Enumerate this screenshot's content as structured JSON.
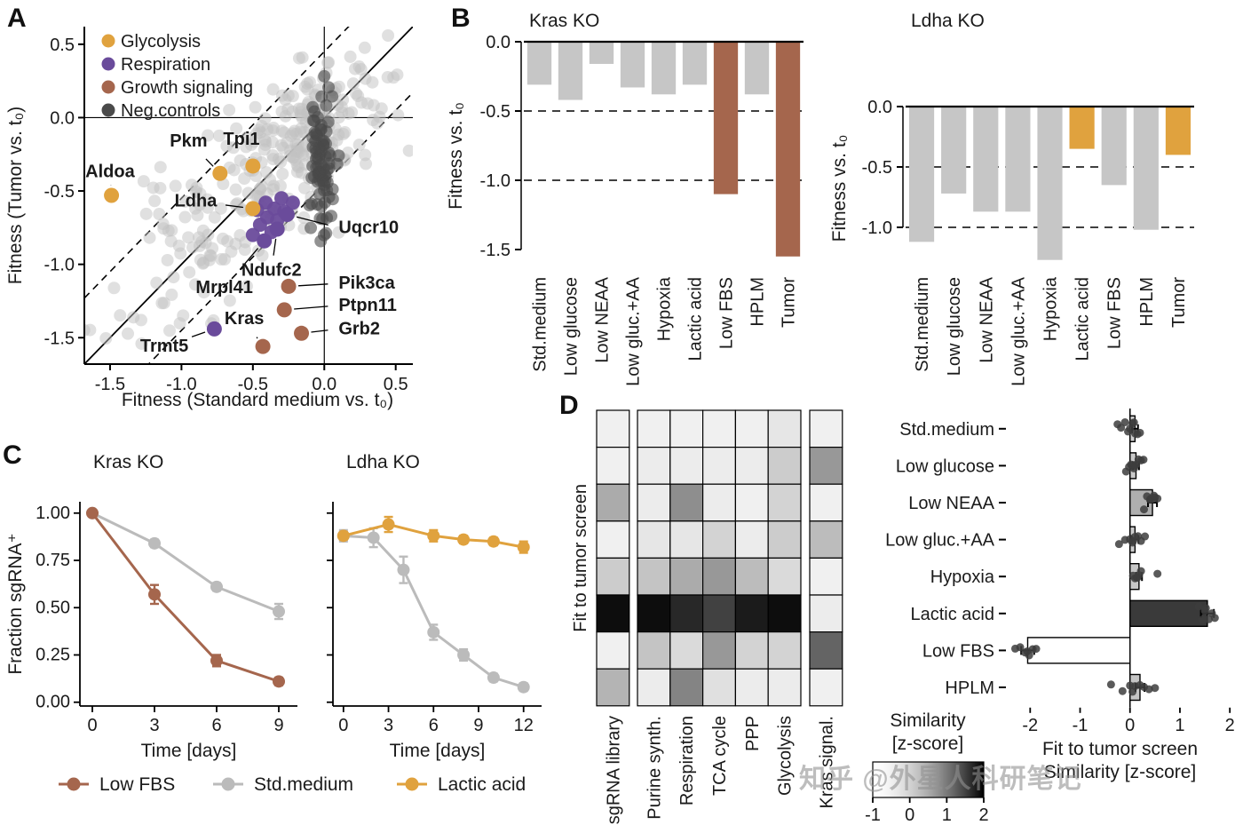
{
  "watermark": "知乎 @外星人科研笔记",
  "panel_labels": {
    "a": "A",
    "b": "B",
    "c": "C",
    "d": "D"
  },
  "colors": {
    "glycolysis": "#E0A23E",
    "respiration": "#6A4B9B",
    "growth": "#A5664D",
    "neg": "#4A4A4A",
    "bar_gray": "#C6C6C6",
    "line_gray": "#BBBBBB",
    "cloud": "#C2C2C2",
    "text": "#1A1A1A"
  },
  "chart_data": [
    {
      "id": "scatter-fitness",
      "panel": "A",
      "type": "scatter",
      "xlabel": "Fitness (Standard medium vs. t₀)",
      "ylabel": "Fitness (Tumor vs. t₀)",
      "xlim": [
        -1.68,
        0.62
      ],
      "ylim": [
        -1.68,
        0.62
      ],
      "xticks": [
        -1.5,
        -1.0,
        -0.5,
        0.0,
        0.5
      ],
      "yticks": [
        0.5,
        0.0,
        -0.5,
        -1.0,
        -1.5
      ],
      "identity_line": true,
      "dashed_offsets": [
        0.45,
        -0.45
      ],
      "legend": [
        {
          "label": "Glycolysis",
          "color_key": "glycolysis"
        },
        {
          "label": "Respiration",
          "color_key": "respiration"
        },
        {
          "label": "Growth signaling",
          "color_key": "growth"
        },
        {
          "label": "Neg.controls",
          "color_key": "neg"
        }
      ],
      "background_clusters": [
        {
          "count": 200,
          "cx": -0.5,
          "cy": -0.5,
          "sx": 0.5,
          "sy": 0.5,
          "corr": 0.8,
          "color_key": "cloud",
          "opacity": 0.5,
          "r": 7,
          "seed": 11
        },
        {
          "count": 120,
          "cx": -0.15,
          "cy": -0.12,
          "sx": 0.25,
          "sy": 0.25,
          "corr": 0.55,
          "color_key": "cloud",
          "opacity": 0.5,
          "r": 7,
          "seed": 23
        },
        {
          "count": 85,
          "cx": -0.02,
          "cy": -0.3,
          "sx": 0.04,
          "sy": 0.24,
          "corr": 0.0,
          "color_key": "neg",
          "opacity": 0.6,
          "r": 7,
          "seed": 7
        }
      ],
      "extra_points": {
        "color_key": "respiration",
        "r": 8,
        "pts": [
          [
            -0.3,
            -0.55
          ],
          [
            -0.35,
            -0.62
          ],
          [
            -0.28,
            -0.64
          ],
          [
            -0.4,
            -0.68
          ],
          [
            -0.33,
            -0.7
          ],
          [
            -0.45,
            -0.73
          ],
          [
            -0.37,
            -0.78
          ],
          [
            -0.5,
            -0.8
          ],
          [
            -0.22,
            -0.58
          ],
          [
            -0.47,
            -0.63
          ],
          [
            -0.41,
            -0.58
          ]
        ]
      },
      "labeled_points": [
        {
          "label": "Pkm",
          "group": "glycolysis",
          "x": -0.73,
          "y": -0.38,
          "lx": -0.95,
          "ly": -0.16,
          "anchor": "middle"
        },
        {
          "label": "Tpi1",
          "group": "glycolysis",
          "x": -0.5,
          "y": -0.33,
          "lx": -0.58,
          "ly": -0.15,
          "anchor": "middle"
        },
        {
          "label": "Aldoa",
          "group": "glycolysis",
          "x": -1.49,
          "y": -0.53,
          "lx": -1.5,
          "ly": -0.37,
          "anchor": "middle"
        },
        {
          "label": "Ldha",
          "group": "glycolysis",
          "x": -0.5,
          "y": -0.62,
          "lx": -0.9,
          "ly": -0.57,
          "anchor": "middle"
        },
        {
          "label": "Uqcr10",
          "group": "respiration",
          "x": -0.26,
          "y": -0.66,
          "lx": 0.1,
          "ly": -0.75,
          "anchor": "start"
        },
        {
          "label": "Ndufc2",
          "group": "respiration",
          "x": -0.33,
          "y": -0.76,
          "lx": -0.37,
          "ly": -1.04,
          "anchor": "middle"
        },
        {
          "label": "Mrpl41",
          "group": "respiration",
          "x": -0.42,
          "y": -0.84,
          "lx": -0.7,
          "ly": -1.16,
          "anchor": "middle"
        },
        {
          "label": "Trmt5",
          "group": "respiration",
          "x": -0.77,
          "y": -1.44,
          "lx": -1.12,
          "ly": -1.56,
          "anchor": "middle"
        },
        {
          "label": "Pik3ca",
          "group": "growth",
          "x": -0.25,
          "y": -1.15,
          "lx": 0.1,
          "ly": -1.13,
          "anchor": "start"
        },
        {
          "label": "Ptpn11",
          "group": "growth",
          "x": -0.28,
          "y": -1.31,
          "lx": 0.1,
          "ly": -1.28,
          "anchor": "start"
        },
        {
          "label": "Grb2",
          "group": "growth",
          "x": -0.16,
          "y": -1.47,
          "lx": 0.1,
          "ly": -1.44,
          "anchor": "start"
        },
        {
          "label": "Kras",
          "group": "growth",
          "x": -0.43,
          "y": -1.56,
          "lx": -0.56,
          "ly": -1.37,
          "anchor": "middle"
        }
      ]
    },
    {
      "id": "bar-kras-ko",
      "panel": "B",
      "type": "bar",
      "title": "Kras KO",
      "ylabel": "Fitness vs. t₀",
      "categories": [
        "Std.medium",
        "Low glucose",
        "Low NEAA",
        "Low gluc.+AA",
        "Hypoxia",
        "Lactic acid",
        "Low FBS",
        "HPLM",
        "Tumor"
      ],
      "values": [
        -0.31,
        -0.42,
        -0.16,
        -0.33,
        -0.38,
        -0.31,
        -1.1,
        -0.38,
        -1.55
      ],
      "highlight_indices": [
        6,
        8
      ],
      "highlight_color_key": "growth",
      "yticks": [
        0.0,
        -0.5,
        -1.0,
        -1.5
      ],
      "ylim": [
        -1.65,
        0
      ],
      "dashed": [
        -0.5,
        -1.0
      ]
    },
    {
      "id": "bar-ldha-ko",
      "panel": "B",
      "type": "bar",
      "title": "Ldha KO",
      "ylabel": "Fitness vs. t₀",
      "categories": [
        "Std.medium",
        "Low glucose",
        "Low NEAA",
        "Low gluc.+AA",
        "Hypoxia",
        "Lactic acid",
        "Low FBS",
        "HPLM",
        "Tumor"
      ],
      "values": [
        -1.12,
        -0.72,
        -0.87,
        -0.87,
        -1.27,
        -0.35,
        -0.65,
        -1.02,
        -0.4
      ],
      "highlight_indices": [
        5,
        8
      ],
      "highlight_color_key": "glycolysis",
      "yticks": [
        0.0,
        -0.5,
        -1.0
      ],
      "ylim": [
        -1.35,
        0
      ],
      "dashed": [
        -0.5,
        -1.0
      ]
    },
    {
      "id": "line-kras-ko",
      "panel": "C",
      "type": "line",
      "title": "Kras KO",
      "ylabel": "Fraction sgRNA⁺",
      "xlabel": "Time [days]",
      "xlim": [
        -0.6,
        9.9
      ],
      "xticks": [
        0,
        3,
        6,
        9
      ],
      "ylim": [
        -0.02,
        1.06
      ],
      "yticks": [
        1.0,
        0.75,
        0.5,
        0.25,
        0.0
      ],
      "series": [
        {
          "name": "Std.medium",
          "color_key": "line_gray",
          "x": [
            0,
            3,
            6,
            9
          ],
          "y": [
            1.0,
            0.84,
            0.61,
            0.48
          ],
          "err": [
            0,
            0.02,
            0.02,
            0.04
          ]
        },
        {
          "name": "Low FBS",
          "color_key": "growth",
          "x": [
            0,
            3,
            6,
            9
          ],
          "y": [
            1.0,
            0.57,
            0.22,
            0.11
          ],
          "err": [
            0,
            0.05,
            0.03,
            0.02
          ]
        }
      ]
    },
    {
      "id": "line-ldha-ko",
      "panel": "C",
      "type": "line",
      "title": "Ldha KO",
      "xlabel": "Time [days]",
      "xlim": [
        -0.7,
        13.2
      ],
      "xticks": [
        0,
        3,
        6,
        9,
        12
      ],
      "ylim": [
        -0.02,
        1.06
      ],
      "yticks": [
        1.0,
        0.75,
        0.5,
        0.25,
        0.0
      ],
      "series": [
        {
          "name": "Std.medium",
          "color_key": "line_gray",
          "x": [
            0,
            2,
            4,
            6,
            8,
            10,
            12
          ],
          "y": [
            0.88,
            0.87,
            0.7,
            0.37,
            0.25,
            0.13,
            0.08
          ],
          "err": [
            0.03,
            0.05,
            0.07,
            0.04,
            0.03,
            0.02,
            0.02
          ]
        },
        {
          "name": "Lactic acid",
          "color_key": "glycolysis",
          "x": [
            0,
            3,
            6,
            8,
            10,
            12
          ],
          "y": [
            0.88,
            0.94,
            0.88,
            0.86,
            0.85,
            0.82
          ],
          "err": [
            0.02,
            0.04,
            0.03,
            0.02,
            0.02,
            0.03
          ]
        }
      ]
    },
    {
      "id": "legend-c",
      "panel": "C",
      "type": "legend",
      "items": [
        {
          "label": "Low FBS",
          "color_key": "growth"
        },
        {
          "label": "Std.medium",
          "color_key": "line_gray"
        },
        {
          "label": "Lactic acid",
          "color_key": "glycolysis"
        }
      ]
    },
    {
      "id": "heatmap-similarity",
      "panel": "D",
      "type": "heatmap",
      "ylabel": "Fit to tumor screen",
      "rows": [
        "Std.medium",
        "Low glucose",
        "Low NEAA",
        "Low gluc.+AA",
        "Hypoxia",
        "Lactic acid",
        "Low FBS",
        "HPLM"
      ],
      "col_groups": [
        [
          "sgRNA library"
        ],
        [
          "Purine synth.",
          "Respiration",
          "TCA cycle",
          "PPP",
          "Glycolysis"
        ],
        [
          "Kras signal."
        ]
      ],
      "scale_min": -1,
      "scale_max": 2,
      "values": [
        [
          -0.5,
          -0.5,
          -0.5,
          -0.5,
          -0.5,
          -0.3,
          -0.5
        ],
        [
          -0.5,
          -0.4,
          -0.4,
          -0.4,
          -0.4,
          0.1,
          0.7
        ],
        [
          0.5,
          -0.4,
          0.8,
          -0.4,
          -0.5,
          0.0,
          -0.5
        ],
        [
          -0.5,
          -0.3,
          -0.3,
          0.0,
          -0.4,
          0.1,
          0.3
        ],
        [
          0.1,
          0.2,
          0.5,
          0.7,
          0.3,
          -0.1,
          -0.5
        ],
        [
          1.9,
          1.9,
          1.7,
          1.5,
          1.8,
          1.9,
          -0.4
        ],
        [
          -0.5,
          0.2,
          -0.1,
          0.7,
          0.0,
          0.0,
          1.2
        ],
        [
          0.4,
          -0.4,
          0.9,
          -0.2,
          -0.4,
          -0.4,
          -0.5
        ]
      ]
    },
    {
      "id": "hbar-similarity",
      "panel": "D",
      "type": "bar-horizontal",
      "xlabel_line1": "Fit to tumor screen",
      "xlabel_line2": "Similarity [z-score]",
      "xlim": [
        -2.45,
        2.05
      ],
      "xticks": [
        -2,
        -1,
        0,
        1,
        2
      ],
      "values": [
        0.1,
        0.12,
        0.45,
        0.1,
        0.18,
        1.55,
        -2.05,
        0.2
      ],
      "errors": [
        0.06,
        0.06,
        0.09,
        0.07,
        0.06,
        0.13,
        0.13,
        0.09
      ],
      "dots": [
        [
          -0.18,
          -0.1,
          -0.04,
          0.0,
          0.05,
          0.1,
          0.15,
          0.2,
          0.08,
          -0.25
        ],
        [
          -0.08,
          -0.02,
          0.04,
          0.08,
          0.12,
          0.17,
          0.22,
          0.27,
          0.02,
          0.1
        ],
        [
          0.28,
          0.34,
          0.4,
          0.45,
          0.5,
          0.55,
          0.42,
          0.48
        ],
        [
          -0.22,
          -0.1,
          0.0,
          0.06,
          0.1,
          0.16,
          0.22,
          0.3,
          0.05
        ],
        [
          0.06,
          0.1,
          0.14,
          0.18,
          0.22,
          0.55,
          0.15
        ],
        [
          1.38,
          1.45,
          1.52,
          1.58,
          1.64,
          1.7,
          1.5
        ],
        [
          -2.3,
          -2.2,
          -2.1,
          -2.02,
          -1.95,
          -1.88,
          -2.06
        ],
        [
          -0.38,
          -0.15,
          0.0,
          0.1,
          0.2,
          0.28,
          0.38,
          0.5,
          0.05
        ]
      ]
    },
    {
      "id": "colorbar-similarity",
      "panel": "D",
      "type": "colorbar",
      "title_line1": "Similarity",
      "title_line2": "[z-score]",
      "min": -1,
      "max": 2,
      "ticks": [
        -1,
        0,
        1,
        2
      ]
    }
  ]
}
